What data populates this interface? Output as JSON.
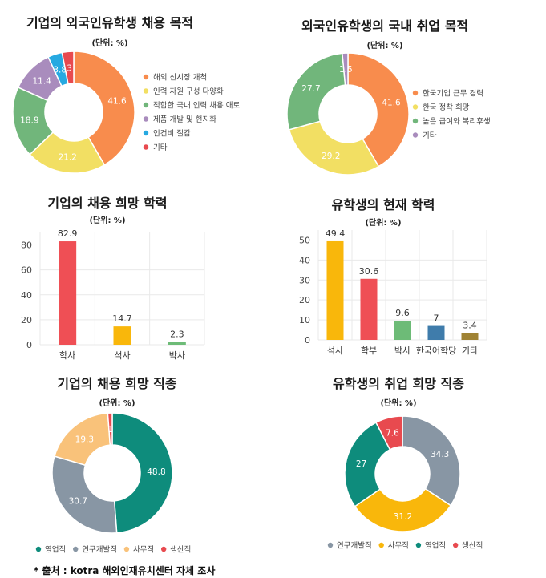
{
  "source": "* 출처 : kotra 해외인재유치센터 자체 조사",
  "colors": {
    "orange": "#F88C4D",
    "yellow": "#F2DF63",
    "green": "#71B67B",
    "purple": "#A98CBD",
    "blue": "#27A9E1",
    "red": "#E84A4F",
    "teal": "#0E8C7C",
    "gray": "#8896A4",
    "peach": "#F9C27A",
    "barRed": "#EF4F55",
    "gold": "#F9B70B",
    "barGreen": "#6DBB77",
    "steel": "#3F7CAB",
    "olive": "#A08334"
  },
  "chart_data": [
    {
      "type": "donut",
      "title": "기업의 외국인유학생 채용 목적",
      "subtitle": "(단위: %)",
      "series": [
        {
          "name": "해외 신시장 개척",
          "value": 41.6,
          "label": "41.6",
          "color": "#F88C4D"
        },
        {
          "name": "인력 자원 구성 다양화",
          "value": 21.2,
          "label": "21.2",
          "color": "#F2DF63"
        },
        {
          "name": "적합한 국내 인력 채용 애로",
          "value": 18.9,
          "label": "18.9",
          "color": "#71B67B"
        },
        {
          "name": "제품 개발 및 현지화",
          "value": 11.4,
          "label": "11.4",
          "color": "#A98CBD"
        },
        {
          "name": "인건비 절감",
          "value": 3.8,
          "label": "3.8",
          "color": "#27A9E1"
        },
        {
          "name": "기타",
          "value": 3.1,
          "label": "3",
          "color": "#E84A4F"
        }
      ],
      "legend": "right"
    },
    {
      "type": "donut",
      "title": "외국인유학생의 국내 취업 목적",
      "subtitle": "(단위: %)",
      "series": [
        {
          "name": "한국기업 근무 경력",
          "value": 41.6,
          "label": "41.6",
          "color": "#F88C4D"
        },
        {
          "name": "한국 정착 희망",
          "value": 29.2,
          "label": "29.2",
          "color": "#F2DF63"
        },
        {
          "name": "높은 급여와 복리후생",
          "value": 27.7,
          "label": "27.7",
          "color": "#71B67B"
        },
        {
          "name": "기타",
          "value": 1.5,
          "label": "1.5",
          "color": "#A98CBD"
        }
      ],
      "legend": "right"
    },
    {
      "type": "bar",
      "title": "기업의 채용 희망 학력",
      "subtitle": "(단위: %)",
      "categories": [
        "학사",
        "석사",
        "박사"
      ],
      "values": [
        82.9,
        14.7,
        2.3
      ],
      "colors": [
        "#EF4F55",
        "#F9B70B",
        "#6DBB77"
      ],
      "ylim": [
        0,
        90
      ],
      "yticks": [
        0,
        20,
        40,
        60,
        80
      ],
      "grid": true
    },
    {
      "type": "bar",
      "title": "유학생의 현재 학력",
      "subtitle": "(단위: %)",
      "categories": [
        "석사",
        "학부",
        "박사",
        "한국어학당",
        "기타"
      ],
      "values": [
        49.4,
        30.6,
        9.6,
        7,
        3.4
      ],
      "colors": [
        "#F9B70B",
        "#EF4F55",
        "#6DBB77",
        "#3F7CAB",
        "#A08334"
      ],
      "ylim": [
        0,
        55
      ],
      "yticks": [
        0,
        10,
        20,
        30,
        40,
        50
      ],
      "grid": true
    },
    {
      "type": "donut",
      "title": "기업의 채용 희망 직종",
      "subtitle": "(단위: %)",
      "series": [
        {
          "name": "영업직",
          "value": 48.8,
          "label": "48.8",
          "color": "#0E8C7C"
        },
        {
          "name": "연구개발직",
          "value": 30.7,
          "label": "30.7",
          "color": "#8896A4"
        },
        {
          "name": "사무직",
          "value": 19.3,
          "label": "19.3",
          "color": "#F9C27A"
        },
        {
          "name": "생산직",
          "value": 1.2,
          "label": "1",
          "color": "#E84A4F"
        }
      ],
      "legend": "bottom"
    },
    {
      "type": "donut",
      "title": "유학생의 취업 희망 직종",
      "subtitle": "(단위: %)",
      "series": [
        {
          "name": "연구개발직",
          "value": 34.3,
          "label": "34.3",
          "color": "#8896A4"
        },
        {
          "name": "사무직",
          "value": 31.2,
          "label": "31.2",
          "color": "#F9B70B"
        },
        {
          "name": "영업직",
          "value": 27,
          "label": "27",
          "color": "#0E8C7C"
        },
        {
          "name": "생산직",
          "value": 7.6,
          "label": "7.6",
          "color": "#E84A4F"
        }
      ],
      "legend": "bottom"
    }
  ]
}
